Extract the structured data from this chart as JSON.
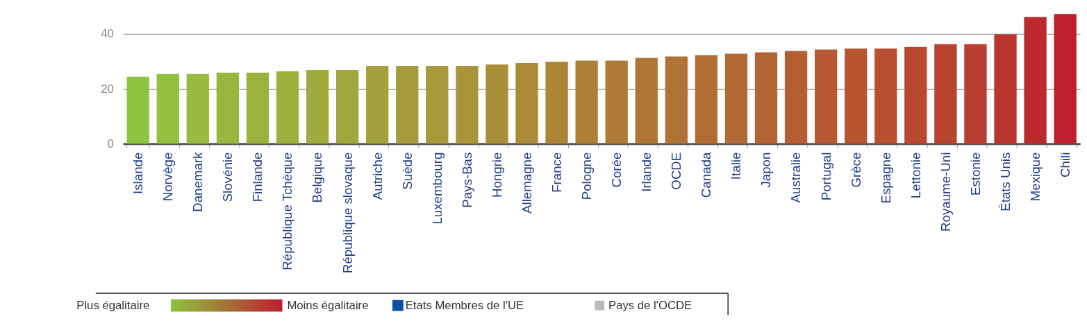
{
  "chart_data": {
    "type": "bar",
    "categories": [
      "Islande",
      "Norvège",
      "Danemark",
      "Slovénie",
      "Finlande",
      "République Tchèque",
      "Belgique",
      "République slovaque",
      "Autriche",
      "Suède",
      "Luxembourg",
      "Pays-Bas",
      "Hongrie",
      "Allemagne",
      "France",
      "Pologne",
      "Corée",
      "Irlande",
      "OCDE",
      "Canada",
      "Italie",
      "Japon",
      "Australie",
      "Portugal",
      "Grèce",
      "Espagne",
      "Lettonie",
      "Royaume-Uni",
      "Estonie",
      "États Unis",
      "Mexique",
      "Chili"
    ],
    "values": [
      24.4,
      25.4,
      25.4,
      25.9,
      25.9,
      26.4,
      26.9,
      26.9,
      28.4,
      28.4,
      28.4,
      28.4,
      28.9,
      29.4,
      29.9,
      30.3,
      30.3,
      31.3,
      31.8,
      32.3,
      32.8,
      33.3,
      33.8,
      34.3,
      34.7,
      34.7,
      35.3,
      36.3,
      36.3,
      39.9,
      46.2,
      47.3
    ],
    "colors": [
      "#8cc43f",
      "#92c03f",
      "#96bb3f",
      "#99b73e",
      "#9bb33e",
      "#9eaf3d",
      "#a0ab3d",
      "#a2a73c",
      "#a3a13b",
      "#a59d3b",
      "#a7993a",
      "#a89539",
      "#aa8f39",
      "#ab8a38",
      "#ad8537",
      "#ae8036",
      "#af7b36",
      "#b07636",
      "#b17236",
      "#b26d35",
      "#b36935",
      "#b46434",
      "#b55e33",
      "#b65933",
      "#b75432",
      "#b84f31",
      "#b84930",
      "#b9432f",
      "#b93e2f",
      "#bb352e",
      "#bc2a2e",
      "#be1f2e"
    ],
    "ylim": [
      0,
      48
    ],
    "yticks": [
      0,
      20,
      40
    ],
    "grid": "y",
    "annotations": [
      "Plus égalitaire",
      "Moins égalitaire",
      "Etats Membres de l'UE",
      "Pays de l'OCDE"
    ]
  }
}
